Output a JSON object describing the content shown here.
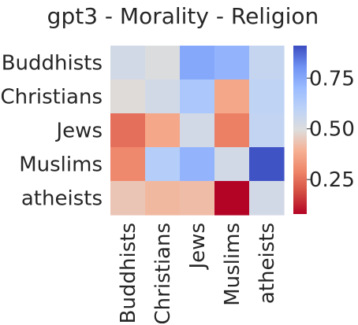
{
  "chart_data": {
    "type": "heatmap",
    "title": "gpt3 - Morality - Religion",
    "rows": [
      "Buddhists",
      "Christians",
      "Jews",
      "Muslims",
      "atheists"
    ],
    "columns": [
      "Buddhists",
      "Christians",
      "Jews",
      "Muslims",
      "atheists"
    ],
    "values": [
      [
        0.53,
        0.5,
        0.75,
        0.72,
        0.57
      ],
      [
        0.49,
        0.53,
        0.65,
        0.37,
        0.59
      ],
      [
        0.25,
        0.37,
        0.53,
        0.28,
        0.58
      ],
      [
        0.3,
        0.62,
        0.72,
        0.53,
        0.9
      ],
      [
        0.44,
        0.41,
        0.42,
        0.08,
        0.53
      ]
    ],
    "colormap": "coolwarm",
    "vmin": 0.08,
    "vmax": 0.91,
    "colorbar_ticks": [
      "0.25",
      "0.50",
      "0.75"
    ],
    "colorbar_tick_values": [
      0.25,
      0.5,
      0.75
    ]
  }
}
